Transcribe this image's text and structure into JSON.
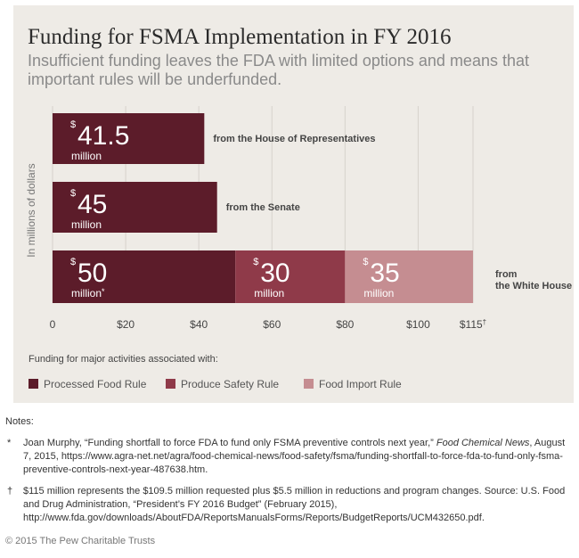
{
  "title": "Funding for FSMA Implementation in FY 2016",
  "subtitle": "Insufficient funding leaves the FDA with limited options and means that important rules will be underfunded.",
  "chart_data": {
    "type": "bar",
    "orientation": "horizontal",
    "stacked": true,
    "ylabel": "In millions of dollars",
    "xlim": [
      0,
      115
    ],
    "x_ticks": [
      "0",
      "$20",
      "$40",
      "$60",
      "$80",
      "$100",
      "$115†"
    ],
    "x_tick_values": [
      0,
      20,
      40,
      60,
      80,
      100,
      115
    ],
    "grid": "vertical",
    "categories": [
      "from the House of Representatives",
      "from the Senate",
      "from the White House"
    ],
    "series": [
      {
        "name": "Processed Food Rule",
        "color": "#5c1c2a",
        "values": [
          41.5,
          45,
          50
        ],
        "value_labels": [
          "41.5",
          "45",
          "50"
        ],
        "unit_labels": [
          "million",
          "million",
          "million*"
        ]
      },
      {
        "name": "Produce Safety Rule",
        "color": "#8f3a49",
        "values": [
          0,
          0,
          30
        ],
        "value_labels": [
          "",
          "",
          "30"
        ],
        "unit_labels": [
          "",
          "",
          "million"
        ]
      },
      {
        "name": "Food Import Rule",
        "color": "#c58d91",
        "values": [
          0,
          0,
          35
        ],
        "value_labels": [
          "",
          "",
          "35"
        ],
        "unit_labels": [
          "",
          "",
          "million"
        ]
      }
    ],
    "currency_symbol": "$",
    "legend_title": "Funding for major activities associated with:",
    "legend_position": "bottom"
  },
  "notes": {
    "heading": "Notes:",
    "items": [
      {
        "symbol": "*",
        "text_before": "Joan Murphy, “Funding shortfall to force FDA to fund only FSMA preventive controls next year,” ",
        "italic": "Food Chemical News",
        "text_after": ", August 7, 2015, https://www.agra-net.net/agra/food-chemical-news/food-safety/fsma/funding-shortfall-to-force-fda-to-fund-only-fsma-preventive-controls-next-year-487638.htm."
      },
      {
        "symbol": "†",
        "text_before": "$115 million represents the $109.5 million requested plus $5.5 million in reductions and program changes. Source: U.S. Food and Drug Administration, “President’s FY 2016 Budget” (February 2015), http://www.fda.gov/downloads/AboutFDA/ReportsManualsForms/Reports/BudgetReports/UCM432650.pdf.",
        "italic": "",
        "text_after": ""
      }
    ]
  },
  "copyright": "© 2015 The Pew Charitable Trusts"
}
